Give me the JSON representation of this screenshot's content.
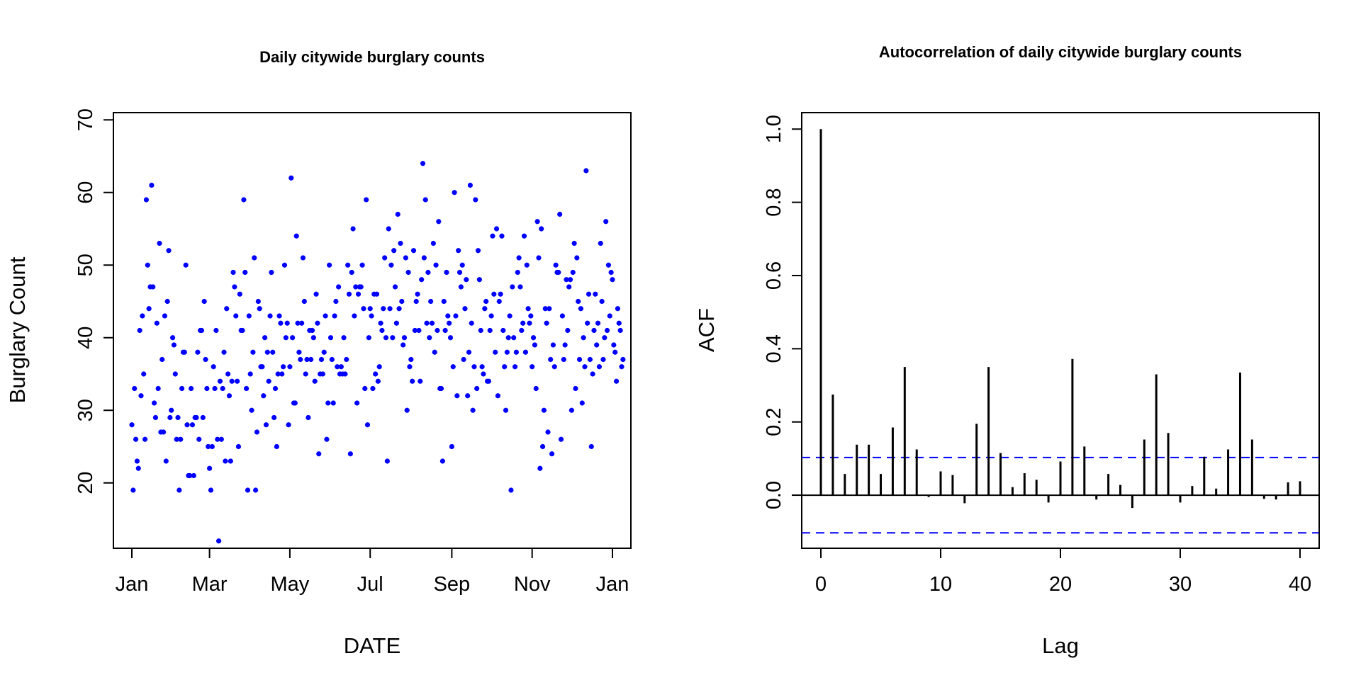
{
  "chart_data": [
    {
      "type": "scatter",
      "title": "Daily citywide burglary counts",
      "xlabel": "DATE",
      "ylabel": "Burglary Count",
      "x_tick_labels": [
        "Jan",
        "Mar",
        "May",
        "Jul",
        "Sep",
        "Nov",
        "Jan"
      ],
      "x_tick_days": [
        0,
        59,
        120,
        181,
        243,
        304,
        365
      ],
      "y_ticks": [
        20,
        30,
        40,
        50,
        60,
        70
      ],
      "ylim": [
        11,
        71
      ],
      "xlim": [
        -14,
        379
      ],
      "point_color": "#0000ff",
      "grid": false,
      "legend": "none",
      "counts_by_day": [
        28,
        19,
        33,
        26,
        23,
        22,
        41,
        32,
        43,
        35,
        26,
        59,
        50,
        44,
        47,
        61,
        47,
        31,
        29,
        42,
        33,
        53,
        27,
        37,
        27,
        43,
        23,
        45,
        52,
        29,
        30,
        40,
        39,
        35,
        26,
        29,
        19,
        26,
        33,
        38,
        38,
        50,
        28,
        21,
        21,
        33,
        28,
        21,
        29,
        29,
        38,
        26,
        41,
        41,
        29,
        45,
        37,
        33,
        25,
        22,
        19,
        25,
        36,
        33,
        41,
        26,
        12,
        34,
        26,
        33,
        38,
        23,
        44,
        35,
        32,
        23,
        34,
        49,
        47,
        43,
        34,
        25,
        46,
        41,
        41,
        59,
        49,
        33,
        19,
        43,
        35,
        30,
        38,
        51,
        19,
        27,
        45,
        44,
        36,
        36,
        32,
        40,
        28,
        38,
        34,
        43,
        49,
        38,
        29,
        33,
        25,
        35,
        43,
        42,
        35,
        36,
        50,
        40,
        42,
        28,
        36,
        62,
        40,
        31,
        31,
        54,
        42,
        38,
        37,
        42,
        51,
        45,
        35,
        37,
        29,
        41,
        37,
        41,
        40,
        34,
        46,
        42,
        24,
        35,
        37,
        35,
        38,
        43,
        26,
        31,
        50,
        40,
        37,
        31,
        43,
        45,
        36,
        47,
        35,
        36,
        35,
        40,
        35,
        37,
        50,
        46,
        24,
        49,
        55,
        43,
        47,
        31,
        46,
        47,
        47,
        50,
        44,
        33,
        59,
        28,
        40,
        44,
        43,
        33,
        46,
        35,
        46,
        34,
        36,
        42,
        41,
        44,
        51,
        40,
        23,
        55,
        44,
        50,
        40,
        52,
        47,
        42,
        57,
        44,
        53,
        45,
        39,
        40,
        51,
        30,
        49,
        36,
        37,
        34,
        52,
        41,
        45,
        46,
        41,
        34,
        48,
        64,
        51,
        59,
        42,
        49,
        40,
        45,
        42,
        53,
        38,
        50,
        41,
        56,
        33,
        33,
        23,
        45,
        41,
        49,
        43,
        42,
        40,
        25,
        36,
        60,
        43,
        32,
        52,
        49,
        47,
        50,
        37,
        44,
        48,
        32,
        38,
        61,
        42,
        30,
        36,
        59,
        33,
        52,
        48,
        41,
        36,
        35,
        44,
        45,
        34,
        34,
        41,
        43,
        54,
        46,
        38,
        55,
        32,
        45,
        46,
        54,
        41,
        36,
        30,
        38,
        40,
        43,
        19,
        47,
        40,
        36,
        38,
        49,
        51,
        47,
        41,
        42,
        54,
        38,
        50,
        44,
        42,
        43,
        36,
        40,
        39,
        33,
        56,
        51,
        22,
        55,
        25,
        30,
        44,
        42,
        27,
        44,
        37,
        24,
        39,
        36,
        50,
        49,
        49,
        57,
        26,
        43,
        37,
        39,
        48,
        41,
        47,
        48,
        30,
        49,
        53,
        33,
        51,
        45,
        37,
        44,
        31,
        40,
        36,
        63,
        42,
        46,
        37,
        25,
        35,
        41,
        46,
        39,
        42,
        36,
        53,
        45,
        37,
        40,
        56,
        41,
        50,
        43,
        49,
        48,
        39,
        38,
        34,
        44,
        42,
        41,
        36,
        37
      ]
    },
    {
      "type": "bar",
      "title": "Autocorrelation of daily citywide burglary counts",
      "xlabel": "Lag",
      "ylabel": "ACF",
      "x_ticks": [
        0,
        10,
        20,
        30,
        40
      ],
      "y_ticks": [
        "0.0",
        "0.2",
        "0.4",
        "0.6",
        "0.8",
        "1.0"
      ],
      "y_tick_values": [
        0.0,
        0.2,
        0.4,
        0.6,
        0.8,
        1.0
      ],
      "xlim": [
        -1.6,
        41.6
      ],
      "ylim": [
        -0.145,
        1.045
      ],
      "lags": [
        0,
        1,
        2,
        3,
        4,
        5,
        6,
        7,
        8,
        9,
        10,
        11,
        12,
        13,
        14,
        15,
        16,
        17,
        18,
        19,
        20,
        21,
        22,
        23,
        24,
        25,
        26,
        27,
        28,
        29,
        30,
        31,
        32,
        33,
        34,
        35,
        36,
        37,
        38,
        39,
        40
      ],
      "acf": [
        1.0,
        0.275,
        0.058,
        0.138,
        0.138,
        0.058,
        0.185,
        0.35,
        0.125,
        -0.005,
        0.065,
        0.055,
        -0.022,
        0.195,
        0.35,
        0.115,
        0.022,
        0.06,
        0.042,
        -0.02,
        0.092,
        0.372,
        0.133,
        -0.012,
        0.058,
        0.028,
        -0.035,
        0.152,
        0.33,
        0.17,
        -0.02,
        0.025,
        0.105,
        0.018,
        0.125,
        0.335,
        0.152,
        -0.01,
        -0.012,
        0.035,
        0.038
      ],
      "confidence_bounds": [
        0.103,
        -0.103
      ],
      "bound_color": "#0000ff",
      "grid": false,
      "legend": "none"
    }
  ]
}
